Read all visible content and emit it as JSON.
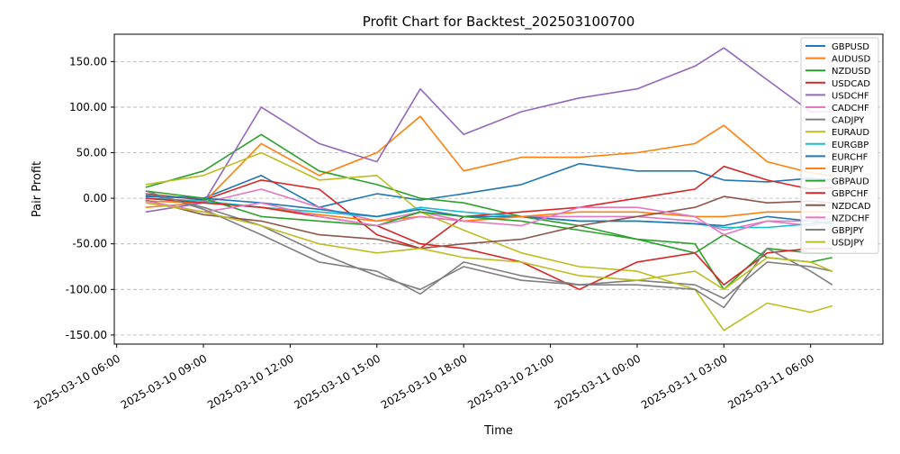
{
  "chart_data": {
    "type": "line",
    "title": "Profit Chart for Backtest_202503100700",
    "xlabel": "Time",
    "ylabel": "Pair Profit",
    "grid": "y-dashed",
    "legend_placement": "top-right",
    "ylim": [
      -160,
      180
    ],
    "xlim": [
      "2025-03-10 05:55",
      "2025-03-11 08:30"
    ],
    "y_ticks": [
      {
        "value": -150,
        "label": "-150.00"
      },
      {
        "value": -100,
        "label": "-100.00"
      },
      {
        "value": -50,
        "label": "-50.00"
      },
      {
        "value": 0,
        "label": "0.00"
      },
      {
        "value": 50,
        "label": "50.00"
      },
      {
        "value": 100,
        "label": "100.00"
      },
      {
        "value": 150,
        "label": "150.00"
      }
    ],
    "x_ticks": [
      {
        "value": "2025-03-10 06:00",
        "label": "2025-03-10 06:00"
      },
      {
        "value": "2025-03-10 09:00",
        "label": "2025-03-10 09:00"
      },
      {
        "value": "2025-03-10 12:00",
        "label": "2025-03-10 12:00"
      },
      {
        "value": "2025-03-10 15:00",
        "label": "2025-03-10 15:00"
      },
      {
        "value": "2025-03-10 18:00",
        "label": "2025-03-10 18:00"
      },
      {
        "value": "2025-03-10 21:00",
        "label": "2025-03-10 21:00"
      },
      {
        "value": "2025-03-11 00:00",
        "label": "2025-03-11 00:00"
      },
      {
        "value": "2025-03-11 03:00",
        "label": "2025-03-11 03:00"
      },
      {
        "value": "2025-03-11 06:00",
        "label": "2025-03-11 06:00"
      }
    ],
    "x_points": [
      "2025-03-10 07:00",
      "2025-03-10 09:00",
      "2025-03-10 11:00",
      "2025-03-10 13:00",
      "2025-03-10 15:00",
      "2025-03-10 16:30",
      "2025-03-10 18:00",
      "2025-03-10 20:00",
      "2025-03-10 22:00",
      "2025-03-11 00:00",
      "2025-03-11 02:00",
      "2025-03-11 03:00",
      "2025-03-11 04:30",
      "2025-03-11 06:00",
      "2025-03-11 06:45"
    ],
    "series": [
      {
        "name": "GBPUSD",
        "color": "#1f77b4",
        "values": [
          3,
          0,
          25,
          -10,
          5,
          -2,
          5,
          15,
          38,
          30,
          30,
          20,
          18,
          22,
          20
        ]
      },
      {
        "name": "AUDUSD",
        "color": "#ff7f0e",
        "values": [
          -10,
          -5,
          60,
          25,
          50,
          90,
          30,
          45,
          45,
          50,
          60,
          80,
          40,
          28,
          25
        ]
      },
      {
        "name": "NZDUSD",
        "color": "#2ca02c",
        "values": [
          12,
          30,
          70,
          30,
          15,
          0,
          -5,
          -20,
          -30,
          -45,
          -60,
          -40,
          -65,
          -70,
          -65
        ]
      },
      {
        "name": "USDCAD",
        "color": "#d62728",
        "values": [
          5,
          -2,
          20,
          10,
          -40,
          -55,
          -20,
          -15,
          -10,
          0,
          10,
          35,
          20,
          10,
          12
        ]
      },
      {
        "name": "USDCHF",
        "color": "#9467bd",
        "values": [
          -15,
          -5,
          100,
          60,
          40,
          120,
          70,
          95,
          110,
          120,
          145,
          165,
          130,
          95,
          95
        ]
      },
      {
        "name": "CADCHF",
        "color": "#e377c2",
        "values": [
          0,
          -5,
          10,
          -10,
          -25,
          -15,
          -25,
          -20,
          -20,
          -20,
          -25,
          -35,
          -25,
          -30,
          -25
        ]
      },
      {
        "name": "CADJPY",
        "color": "#7f7f7f",
        "values": [
          5,
          -10,
          -30,
          -60,
          -85,
          -100,
          -75,
          -90,
          -95,
          -90,
          -95,
          -110,
          -70,
          -75,
          -80
        ]
      },
      {
        "name": "EURAUD",
        "color": "#bcbd22",
        "values": [
          15,
          25,
          50,
          20,
          25,
          -15,
          -35,
          -60,
          -75,
          -80,
          -100,
          -145,
          -115,
          -125,
          -118
        ]
      },
      {
        "name": "EURGBP",
        "color": "#17becf",
        "values": [
          0,
          -3,
          -10,
          -15,
          -20,
          -10,
          -15,
          -20,
          -25,
          -25,
          -28,
          -32,
          -32,
          -28,
          -25
        ]
      },
      {
        "name": "EURCHF",
        "color": "#1f77b4",
        "values": [
          2,
          0,
          -5,
          -12,
          -20,
          -12,
          -20,
          -20,
          -25,
          -25,
          -28,
          -30,
          -20,
          -25,
          -28
        ]
      },
      {
        "name": "EURJPY",
        "color": "#ff7f0e",
        "values": [
          -3,
          -5,
          -10,
          -18,
          -25,
          -20,
          -25,
          -20,
          -15,
          -15,
          -20,
          -20,
          -15,
          -15,
          -15
        ]
      },
      {
        "name": "GBPAUD",
        "color": "#2ca02c",
        "values": [
          8,
          0,
          -20,
          -25,
          -30,
          -15,
          -20,
          -25,
          -35,
          -45,
          -50,
          -100,
          -55,
          -60,
          -60
        ]
      },
      {
        "name": "GBPCHF",
        "color": "#d62728",
        "values": [
          0,
          -5,
          -10,
          -20,
          -30,
          -50,
          -55,
          -70,
          -100,
          -70,
          -60,
          -95,
          -60,
          -55,
          -55
        ]
      },
      {
        "name": "NZDCAD",
        "color": "#8c564b",
        "values": [
          -2,
          -18,
          -25,
          -40,
          -45,
          -55,
          -50,
          -45,
          -30,
          -20,
          -10,
          2,
          -5,
          -3,
          -5
        ]
      },
      {
        "name": "NZDCHF",
        "color": "#e377c2",
        "values": [
          -3,
          -15,
          -5,
          -20,
          -30,
          -20,
          -25,
          -30,
          -10,
          -10,
          -20,
          -40,
          -25,
          -25,
          -22
        ]
      },
      {
        "name": "GBPJPY",
        "color": "#7f7f7f",
        "values": [
          8,
          -12,
          -40,
          -70,
          -80,
          -105,
          -70,
          -85,
          -95,
          -95,
          -100,
          -120,
          -55,
          -80,
          -95
        ]
      },
      {
        "name": "USDJPY",
        "color": "#bcbd22",
        "values": [
          -5,
          -15,
          -30,
          -50,
          -60,
          -55,
          -65,
          -70,
          -85,
          -90,
          -80,
          -100,
          -65,
          -70,
          -80
        ]
      }
    ]
  }
}
